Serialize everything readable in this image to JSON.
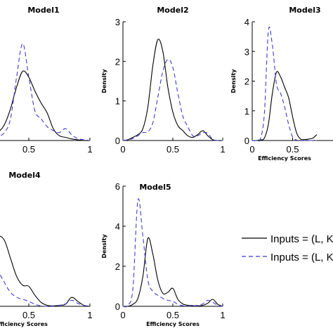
{
  "chart_data": [
    {
      "type": "line",
      "title": "Model1",
      "xlabel": "",
      "ylabel": "",
      "xlim": [
        0,
        1
      ],
      "ylim": [
        0,
        3
      ],
      "xticks": [
        "0.5",
        "1"
      ],
      "yticks": [],
      "series": [
        {
          "name": "solid",
          "style": "solid",
          "color": "#000000",
          "x": [
            0,
            0.05,
            0.1,
            0.15,
            0.2,
            0.25,
            0.3,
            0.35,
            0.4,
            0.45,
            0.5,
            0.55,
            0.6,
            0.65,
            0.7,
            0.75,
            0.8,
            0.85,
            0.9,
            0.95,
            1.0
          ],
          "y": [
            0.3,
            0.12,
            0.05,
            0.08,
            0.22,
            0.22,
            0.4,
            0.8,
            1.35,
            1.75,
            1.6,
            1.25,
            0.95,
            0.7,
            0.3,
            0.12,
            0.08,
            0.04,
            0.02,
            0.0,
            0.0
          ]
        },
        {
          "name": "dashed",
          "style": "dashed",
          "color": "#3b3bd0",
          "x": [
            0,
            0.05,
            0.1,
            0.15,
            0.2,
            0.25,
            0.3,
            0.35,
            0.4,
            0.45,
            0.5,
            0.55,
            0.6,
            0.65,
            0.7,
            0.75,
            0.8,
            0.85,
            0.9,
            0.95,
            1.0
          ],
          "y": [
            0.22,
            0.12,
            0.12,
            0.15,
            0.18,
            0.12,
            0.2,
            0.55,
            1.6,
            2.45,
            1.6,
            0.75,
            0.55,
            0.35,
            0.25,
            0.2,
            0.3,
            0.15,
            0.05,
            0.02,
            0.0
          ]
        }
      ]
    },
    {
      "type": "line",
      "title": "Model2",
      "xlabel": "",
      "ylabel": "Density",
      "xlim": [
        0,
        1
      ],
      "ylim": [
        0,
        3
      ],
      "xticks": [
        "0",
        "0.5",
        "1"
      ],
      "yticks": [
        "0",
        "1",
        "2",
        "3"
      ],
      "series": [
        {
          "name": "solid",
          "style": "solid",
          "color": "#000000",
          "x": [
            0,
            0.05,
            0.1,
            0.15,
            0.2,
            0.25,
            0.3,
            0.35,
            0.4,
            0.45,
            0.5,
            0.55,
            0.6,
            0.65,
            0.7,
            0.75,
            0.8,
            0.85,
            0.9,
            0.95,
            1.0
          ],
          "y": [
            0.0,
            0.02,
            0.08,
            0.15,
            0.3,
            0.85,
            1.9,
            2.55,
            2.25,
            1.35,
            0.72,
            0.38,
            0.25,
            0.12,
            0.08,
            0.15,
            0.25,
            0.12,
            0.02,
            0.0,
            0.0
          ]
        },
        {
          "name": "dashed",
          "style": "dashed",
          "color": "#3b3bd0",
          "x": [
            0,
            0.05,
            0.1,
            0.15,
            0.2,
            0.25,
            0.3,
            0.35,
            0.4,
            0.45,
            0.5,
            0.55,
            0.6,
            0.65,
            0.7,
            0.75,
            0.8,
            0.85,
            0.9,
            0.95,
            1.0
          ],
          "y": [
            0.0,
            0.02,
            0.05,
            0.12,
            0.2,
            0.22,
            0.45,
            1.1,
            1.75,
            2.05,
            1.85,
            1.2,
            0.62,
            0.35,
            0.12,
            0.12,
            0.2,
            0.18,
            0.03,
            0.0,
            0.0
          ]
        }
      ]
    },
    {
      "type": "line",
      "title": "Model3",
      "xlabel": "Efficiency Scores",
      "ylabel": "Density",
      "xlim": [
        0,
        1
      ],
      "ylim": [
        0,
        4
      ],
      "xticks": [
        "0",
        "0.5"
      ],
      "yticks": [
        "0",
        "1",
        "2",
        "3",
        "4"
      ],
      "series": [
        {
          "name": "solid",
          "style": "solid",
          "color": "#000000",
          "x": [
            0,
            0.05,
            0.1,
            0.15,
            0.2,
            0.25,
            0.3,
            0.35,
            0.4,
            0.45,
            0.5,
            0.55,
            0.6,
            0.65,
            0.7,
            0.75,
            0.8
          ],
          "y": [
            0.0,
            0.0,
            0.02,
            0.08,
            0.55,
            1.6,
            2.3,
            2.15,
            1.8,
            1.45,
            0.8,
            0.25,
            0.05,
            0.03,
            0.05,
            0.08,
            0.2
          ]
        },
        {
          "name": "dashed",
          "style": "dashed",
          "color": "#3b3bd0",
          "x": [
            0,
            0.05,
            0.1,
            0.15,
            0.2,
            0.25,
            0.3,
            0.35,
            0.4,
            0.45,
            0.5,
            0.55,
            0.6,
            0.65,
            0.7,
            0.75,
            0.8
          ],
          "y": [
            0.0,
            0.0,
            0.05,
            0.9,
            3.7,
            3.2,
            1.9,
            1.6,
            1.15,
            0.55,
            0.12,
            0.02,
            0.0,
            0.0,
            0.0,
            0.0,
            0.0
          ]
        }
      ]
    },
    {
      "type": "line",
      "title": "Model4",
      "xlabel": "Efficiency Scores",
      "ylabel": "",
      "xlim": [
        0,
        1
      ],
      "ylim": [
        0,
        6
      ],
      "xticks": [
        "0.5",
        "1"
      ],
      "yticks": [],
      "series": [
        {
          "name": "solid",
          "style": "solid",
          "color": "#000000",
          "x": [
            0,
            0.05,
            0.1,
            0.15,
            0.2,
            0.25,
            0.3,
            0.35,
            0.4,
            0.45,
            0.5,
            0.55,
            0.6,
            0.65,
            0.7,
            0.75,
            0.8,
            0.85,
            0.9,
            0.95,
            1.0
          ],
          "y": [
            0.0,
            0.1,
            0.3,
            0.9,
            2.2,
            3.4,
            3.3,
            2.4,
            1.5,
            1.05,
            1.0,
            0.55,
            0.2,
            0.05,
            0.02,
            0.05,
            0.1,
            0.45,
            0.25,
            0.05,
            0.0
          ]
        },
        {
          "name": "dashed",
          "style": "dashed",
          "color": "#3b3bd0",
          "x": [
            0,
            0.05,
            0.1,
            0.15,
            0.2,
            0.25,
            0.3,
            0.35,
            0.4,
            0.45,
            0.5,
            0.55,
            0.6,
            0.65,
            0.7,
            0.75,
            0.8,
            0.85,
            0.9,
            0.95,
            1.0
          ],
          "y": [
            0.0,
            0.5,
            2.5,
            5.2,
            3.8,
            1.9,
            1.2,
            0.7,
            0.45,
            0.35,
            0.25,
            0.1,
            0.02,
            0.0,
            0.0,
            0.05,
            0.12,
            0.3,
            0.15,
            0.05,
            0.0
          ]
        }
      ]
    },
    {
      "type": "line",
      "title": "Model5",
      "xlabel": "Efficiency Scores",
      "ylabel": "Density",
      "xlim": [
        0,
        1
      ],
      "ylim": [
        0,
        6
      ],
      "xticks": [
        "0",
        "0.5",
        "1"
      ],
      "yticks": [
        "0",
        "2",
        "4",
        "6"
      ],
      "series": [
        {
          "name": "solid",
          "style": "solid",
          "color": "#000000",
          "x": [
            0,
            0.05,
            0.1,
            0.15,
            0.2,
            0.25,
            0.3,
            0.35,
            0.4,
            0.45,
            0.5,
            0.55,
            0.6,
            0.65,
            0.7,
            0.75,
            0.8,
            0.85,
            0.9,
            0.95,
            1.0
          ],
          "y": [
            0.0,
            0.0,
            0.1,
            0.4,
            1.5,
            3.4,
            2.6,
            1.3,
            0.65,
            0.7,
            0.9,
            0.35,
            0.12,
            0.05,
            0.03,
            0.02,
            0.05,
            0.15,
            0.35,
            0.1,
            0.0
          ]
        },
        {
          "name": "dashed",
          "style": "dashed",
          "color": "#3b3bd0",
          "x": [
            0,
            0.05,
            0.1,
            0.15,
            0.2,
            0.25,
            0.3,
            0.35,
            0.4,
            0.45,
            0.5,
            0.55,
            0.6,
            0.65,
            0.7,
            0.75,
            0.8,
            0.85,
            0.9,
            0.95,
            1.0
          ],
          "y": [
            0.0,
            0.05,
            0.9,
            5.3,
            3.5,
            1.3,
            0.75,
            0.55,
            0.4,
            0.3,
            0.25,
            0.1,
            0.03,
            0.02,
            0.02,
            0.05,
            0.12,
            0.3,
            0.2,
            0.05,
            0.0
          ]
        }
      ]
    }
  ],
  "legend": {
    "position": "right",
    "entries": [
      {
        "label": "Inputs = (L, K",
        "style": "solid",
        "color": "#000000"
      },
      {
        "label": "Inputs = (L, K",
        "style": "dashed",
        "color": "#3b3bd0"
      }
    ]
  }
}
